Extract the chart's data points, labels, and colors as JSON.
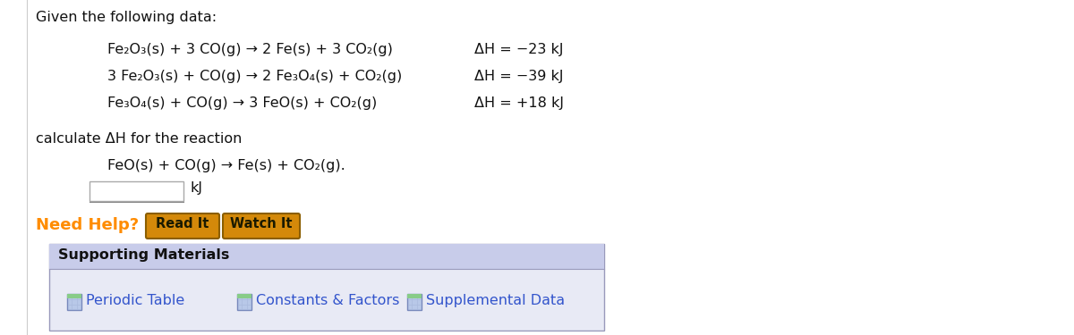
{
  "bg_color": "#ffffff",
  "title_text": "Given the following data:",
  "eq1": "Fe₂O₃(s) + 3 CO(g) → 2 Fe(s) + 3 CO₂(g)",
  "eq2": "3 Fe₂O₃(s) + CO(g) → 2 Fe₃O₄(s) + CO₂(g)",
  "eq3": "Fe₃O₄(s) + CO(g) → 3 FeO(s) + CO₂(g)",
  "dh1": "ΔH = −23 kJ",
  "dh2": "ΔH = −39 kJ",
  "dh3": "ΔH = +18 kJ",
  "calc_text": "calculate ΔH for the reaction",
  "target_eq": "FeO(s) + CO(g) → Fe(s) + CO₂(g).",
  "kj_label": "kJ",
  "need_help_text": "Need Help?",
  "btn1_text": "Read It",
  "btn2_text": "Watch It",
  "supporting_header": "Supporting Materials",
  "link1": "Periodic Table",
  "link2": "Constants & Factors",
  "link3": "Supplemental Data",
  "need_help_color": "#FF8C00",
  "btn_face_color": "#D4890A",
  "btn_edge_color": "#8B5E00",
  "btn_text_color": "#1a1a00",
  "link_color": "#3355CC",
  "supporting_header_bg": "#C8CCEA",
  "supporting_body_bg": "#E8EAF5",
  "supporting_border": "#9999BB",
  "text_color": "#111111",
  "input_box_border": "#aaaaaa",
  "icon_bg": "#b8c8e8",
  "icon_border": "#7788bb"
}
